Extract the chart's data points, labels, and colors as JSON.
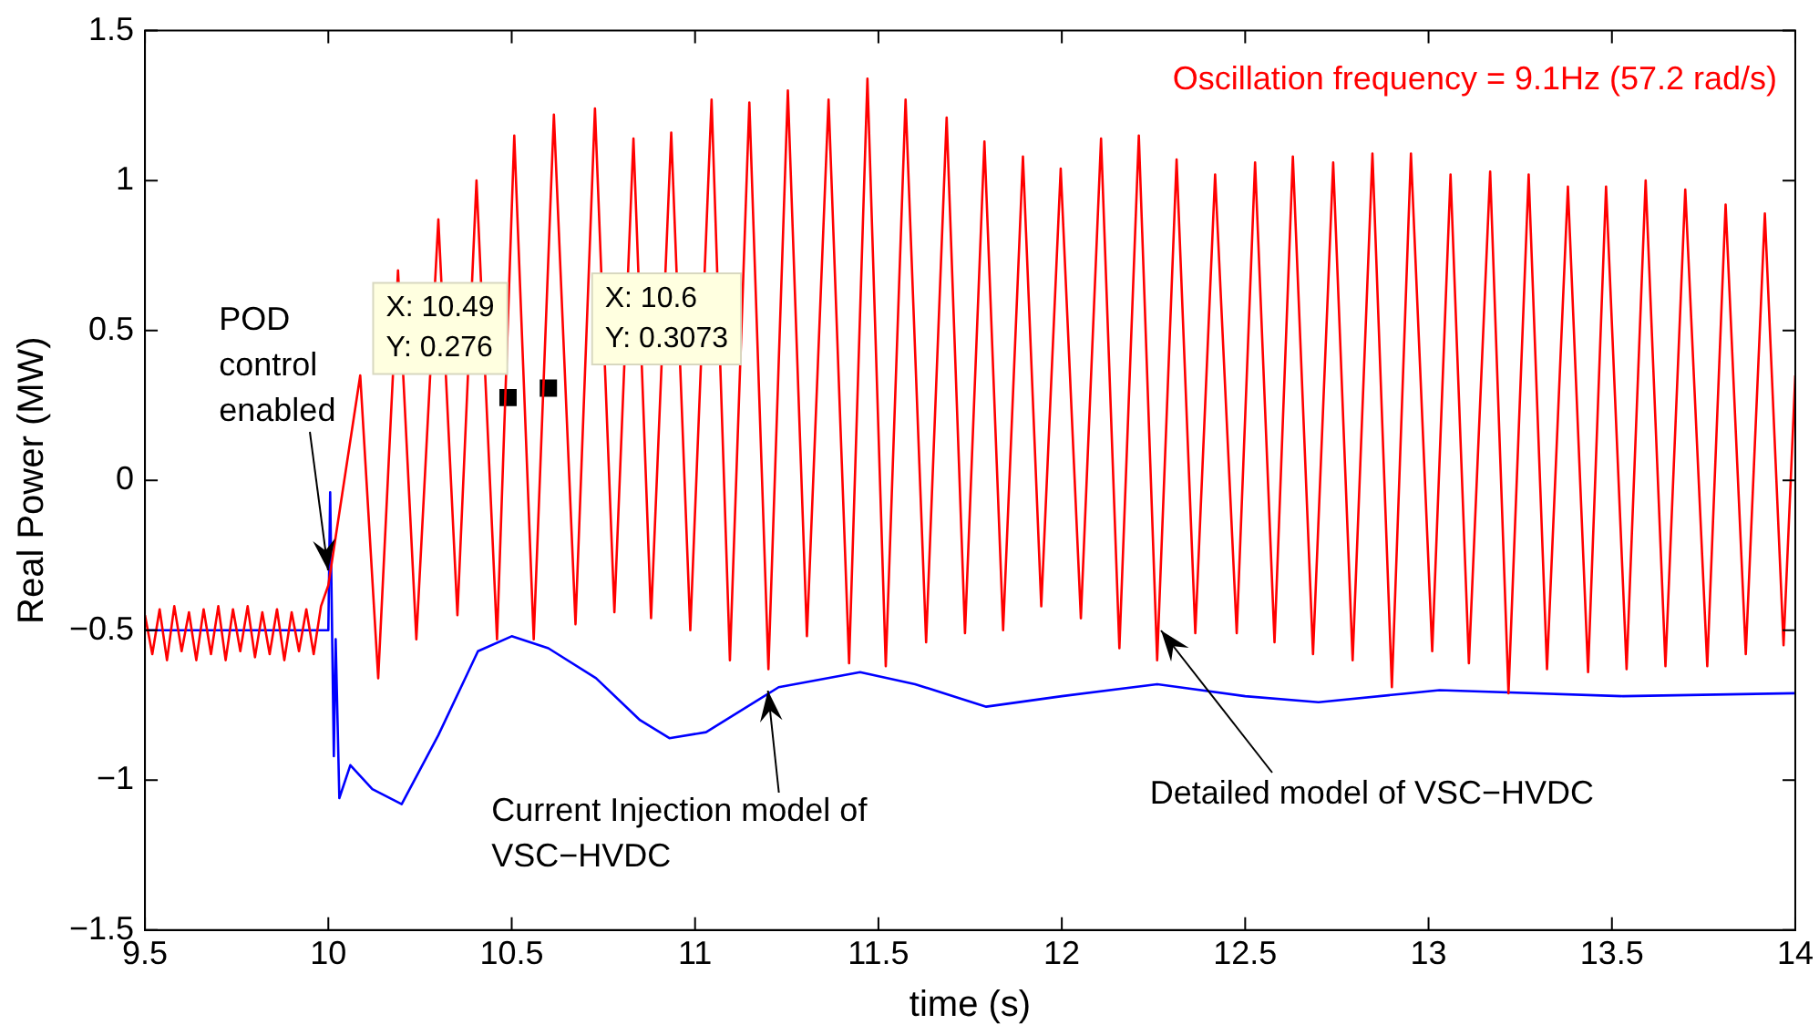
{
  "chart_data": {
    "type": "line",
    "xlabel": "time (s)",
    "ylabel": "Real Power (MW)",
    "xlim": [
      9.5,
      14
    ],
    "xticks": [
      9.5,
      10,
      10.5,
      11,
      11.5,
      12,
      12.5,
      13,
      13.5,
      14
    ],
    "ylim": [
      -1.5,
      1.5
    ],
    "yticks": [
      {
        "value": -1.5,
        "label": "−1.5"
      },
      {
        "value": -1,
        "label": "−1"
      },
      {
        "value": -0.5,
        "label": "−0.5"
      },
      0,
      0.5,
      1,
      1.5
    ],
    "grid": false,
    "legend": false,
    "marker": "none",
    "line_style": "solid",
    "series": [
      {
        "color": "#ff0000",
        "x": [
          9.5,
          9.52,
          9.54,
          9.56,
          9.58,
          9.6,
          9.62,
          9.64,
          9.66,
          9.68,
          9.7,
          9.72,
          9.74,
          9.76,
          9.78,
          9.8,
          9.82,
          9.84,
          9.86,
          9.88,
          9.9,
          9.92,
          9.94,
          9.96,
          9.98,
          10.0,
          10.087,
          10.136,
          10.19,
          10.24,
          10.3,
          10.352,
          10.404,
          10.46,
          10.507,
          10.56,
          10.615,
          10.674,
          10.727,
          10.78,
          10.832,
          10.88,
          10.935,
          10.987,
          11.045,
          11.095,
          11.148,
          11.2,
          11.253,
          11.305,
          11.364,
          11.42,
          11.47,
          11.52,
          11.574,
          11.63,
          11.686,
          11.736,
          11.789,
          11.84,
          11.894,
          11.944,
          11.997,
          12.052,
          12.107,
          12.157,
          12.21,
          12.26,
          12.313,
          12.364,
          12.418,
          12.477,
          12.527,
          12.58,
          12.63,
          12.685,
          12.74,
          12.793,
          12.847,
          12.9,
          12.952,
          13.01,
          13.06,
          13.11,
          13.168,
          13.218,
          13.273,
          13.323,
          13.38,
          13.435,
          13.484,
          13.54,
          13.592,
          13.646,
          13.7,
          13.76,
          13.81,
          13.865,
          13.917,
          13.968,
          14.0
        ],
        "values": [
          -0.45,
          -0.58,
          -0.43,
          -0.6,
          -0.42,
          -0.57,
          -0.44,
          -0.6,
          -0.43,
          -0.58,
          -0.42,
          -0.6,
          -0.43,
          -0.57,
          -0.42,
          -0.59,
          -0.44,
          -0.58,
          -0.43,
          -0.6,
          -0.44,
          -0.57,
          -0.43,
          -0.58,
          -0.42,
          -0.35,
          0.35,
          -0.66,
          0.7,
          -0.53,
          0.87,
          -0.45,
          1.0,
          -0.53,
          1.15,
          -0.53,
          1.22,
          -0.48,
          1.24,
          -0.44,
          1.14,
          -0.46,
          1.16,
          -0.5,
          1.27,
          -0.6,
          1.26,
          -0.63,
          1.3,
          -0.52,
          1.27,
          -0.61,
          1.34,
          -0.62,
          1.27,
          -0.54,
          1.21,
          -0.51,
          1.13,
          -0.5,
          1.08,
          -0.42,
          1.04,
          -0.46,
          1.14,
          -0.56,
          1.15,
          -0.6,
          1.07,
          -0.51,
          1.02,
          -0.51,
          1.06,
          -0.54,
          1.08,
          -0.58,
          1.06,
          -0.6,
          1.09,
          -0.69,
          1.09,
          -0.57,
          1.02,
          -0.61,
          1.03,
          -0.71,
          1.02,
          -0.63,
          0.98,
          -0.64,
          0.98,
          -0.63,
          1.0,
          -0.62,
          0.97,
          -0.62,
          0.92,
          -0.58,
          0.89,
          -0.55,
          0.35
        ]
      },
      {
        "color": "#0000ff",
        "x": [
          9.5,
          10.0,
          10.005,
          10.015,
          10.02,
          10.03,
          10.06,
          10.12,
          10.2,
          10.3,
          10.408,
          10.5,
          10.6,
          10.73,
          10.85,
          10.93,
          11.03,
          11.228,
          11.45,
          11.6,
          11.794,
          12.0,
          12.26,
          12.5,
          12.7,
          13.03,
          13.53,
          14.0
        ],
        "values": [
          -0.5,
          -0.5,
          -0.04,
          -0.92,
          -0.53,
          -1.06,
          -0.95,
          -1.03,
          -1.08,
          -0.85,
          -0.57,
          -0.52,
          -0.56,
          -0.66,
          -0.8,
          -0.86,
          -0.84,
          -0.69,
          -0.64,
          -0.68,
          -0.755,
          -0.72,
          -0.68,
          -0.72,
          -0.74,
          -0.7,
          -0.72,
          -0.71
        ]
      },
      {
        "type": "scatter",
        "color": "#000000",
        "marker": "square",
        "x": [
          10.49,
          10.6
        ],
        "values": [
          0.276,
          0.3073
        ]
      }
    ],
    "annotations": [
      "Oscillation frequency = 9.1Hz (57.2 rad/s)",
      {
        "text": "POD\ncontrol\nenabled",
        "x": 10,
        "y": -0.3
      },
      {
        "text": "Current Injection model of\nVSC−HVDC",
        "x": 11.2,
        "y": -0.7
      },
      {
        "text": "Detailed model of VSC−HVDC",
        "x": 12.27,
        "y": -0.5
      },
      {
        "text": "X: 10.49\nY: 0.276",
        "x": 10.49,
        "y": 0.276
      },
      {
        "text": "X: 10.6\nY: 0.3073",
        "x": 10.6,
        "y": 0.3073
      }
    ]
  }
}
